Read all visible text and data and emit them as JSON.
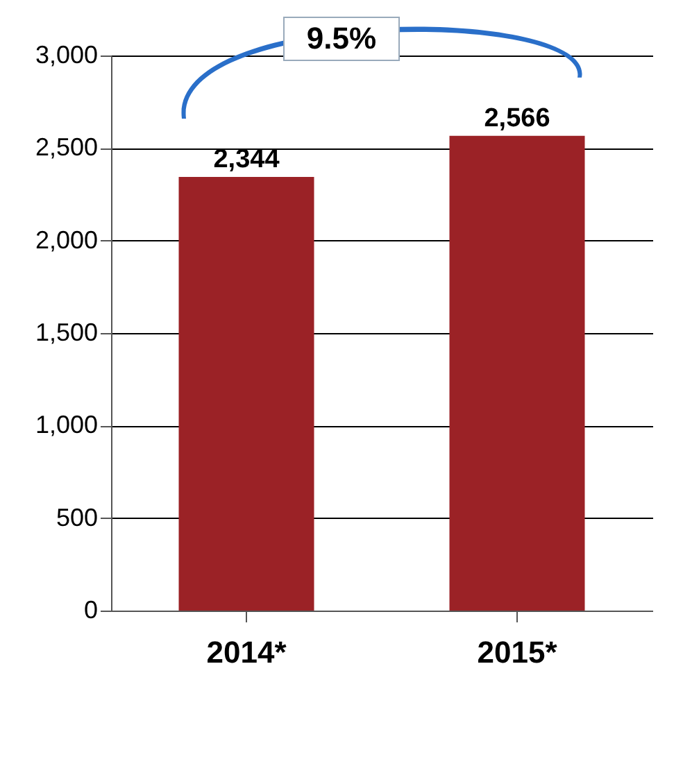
{
  "chart_data": {
    "type": "bar",
    "categories": [
      "2014*",
      "2015*"
    ],
    "values": [
      2344,
      2566
    ],
    "value_labels": [
      "2,344",
      "2,566"
    ],
    "color": "#9b2226",
    "ylim": [
      0,
      3000
    ],
    "yticks": [
      0,
      {
        "value": 500,
        "label": "500"
      },
      {
        "value": 1000,
        "label": "1,000"
      },
      {
        "value": 1500,
        "label": "1,500"
      },
      {
        "value": 2000,
        "label": "2,000"
      },
      {
        "value": 2500,
        "label": "2,500"
      },
      {
        "value": 3000,
        "label": "3,000"
      }
    ],
    "grid": "y",
    "annotations": [
      "9.5%"
    ]
  }
}
